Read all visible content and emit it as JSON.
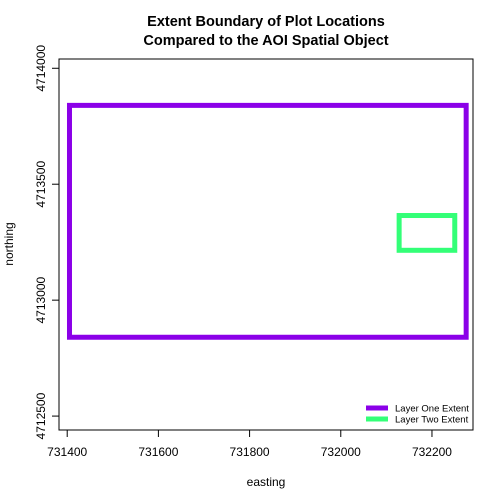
{
  "chart_data": {
    "type": "line",
    "title_lines": [
      "Extent Boundary of Plot Locations",
      "Compared to the AOI Spatial Object"
    ],
    "xlabel": "easting",
    "ylabel": "northing",
    "xlim": [
      731382,
      732290
    ],
    "ylim": [
      4712440,
      4714040
    ],
    "x_ticks": [
      731400,
      731600,
      731800,
      732000,
      732200
    ],
    "y_ticks": [
      4712500,
      4713000,
      4713500,
      4714000
    ],
    "series": [
      {
        "name": "Layer One Extent",
        "color": "#8b00e8",
        "xmin": 731405,
        "xmax": 732275,
        "ymin": 4712840,
        "ymax": 4713840
      },
      {
        "name": "Layer Two Extent",
        "color": "#33ff77",
        "xmin": 732128,
        "xmax": 732250,
        "ymin": 4713215,
        "ymax": 4713365
      }
    ],
    "legend_position": "bottom-right",
    "grid": false
  }
}
